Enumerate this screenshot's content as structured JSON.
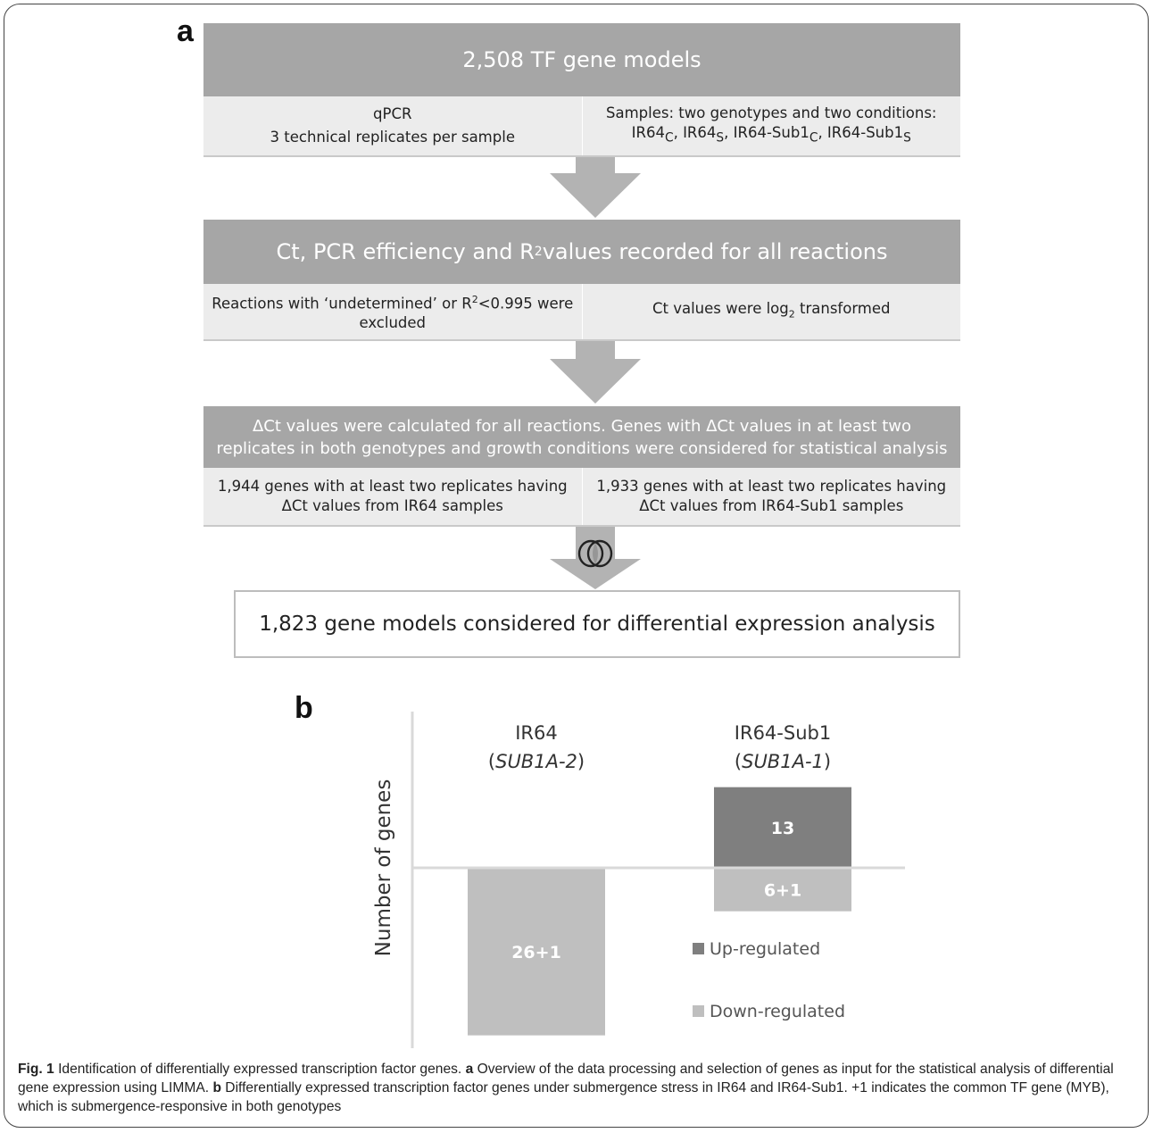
{
  "panel_a": {
    "letter": "a",
    "box1": {
      "title": "2,508 TF gene models",
      "left": [
        "qPCR",
        "3 technical replicates per sample"
      ],
      "right_line1": "Samples: two genotypes and two conditions:",
      "samples": [
        "IR64",
        "C",
        ", IR64",
        "S",
        ", IR64-Sub1",
        "C",
        ", IR64-Sub1",
        "S"
      ]
    },
    "box2": {
      "title_pre": "Ct, PCR efficiency and R",
      "title_sup": "2",
      "title_post": " values recorded for all reactions",
      "left_pre": "Reactions with ‘undetermined’ or R",
      "left_sup": "2",
      "left_post": "<0.995 were excluded",
      "right_pre": "Ct values were log",
      "right_sub": "2",
      "right_post": " transformed"
    },
    "box3": {
      "title": "ΔCt values were calculated for all reactions. Genes with ΔCt values in at least two replicates in both genotypes and growth conditions were considered for statistical analysis",
      "left": [
        "1,944 genes with at least two replicates having",
        "ΔCt values from IR64 samples"
      ],
      "right": [
        "1,933 genes with at least two replicates having",
        "ΔCt values from IR64-Sub1 samples"
      ]
    },
    "final": "1,823 gene models considered for differential expression analysis"
  },
  "panel_b": {
    "letter": "b",
    "chart_data": {
      "type": "bar",
      "categories": [
        "IR64 (SUB1A-2)",
        "IR64-Sub1 (SUB1A-1)"
      ],
      "category_labels": [
        {
          "name": "IR64",
          "allele": "SUB1A-2"
        },
        {
          "name": "IR64-Sub1",
          "allele": "SUB1A-1"
        }
      ],
      "ylabel": "Number of genes",
      "series": [
        {
          "name": "Up-regulated",
          "values": [
            0,
            13
          ],
          "labels": [
            "",
            "13"
          ],
          "color": "#7f7f7f"
        },
        {
          "name": "Down-regulated",
          "values": [
            -27,
            -7
          ],
          "labels": [
            "26+1",
            "6+1"
          ],
          "color": "#bfbfbf"
        }
      ],
      "legend_position": "bottom-right"
    }
  },
  "caption": {
    "fig": "Fig. 1",
    "title": " Identification of differentially expressed transcription factor genes. ",
    "a_letter": "a",
    "a_text": " Overview of the data processing and selection of genes as input for the statistical analysis of differential gene expression using LIMMA. ",
    "b_letter": "b",
    "b_text": " Differentially expressed transcription factor genes under submergence stress in IR64 and IR64-Sub1. +1 indicates the common TF gene (MYB), which is submergence-responsive in both genotypes"
  }
}
